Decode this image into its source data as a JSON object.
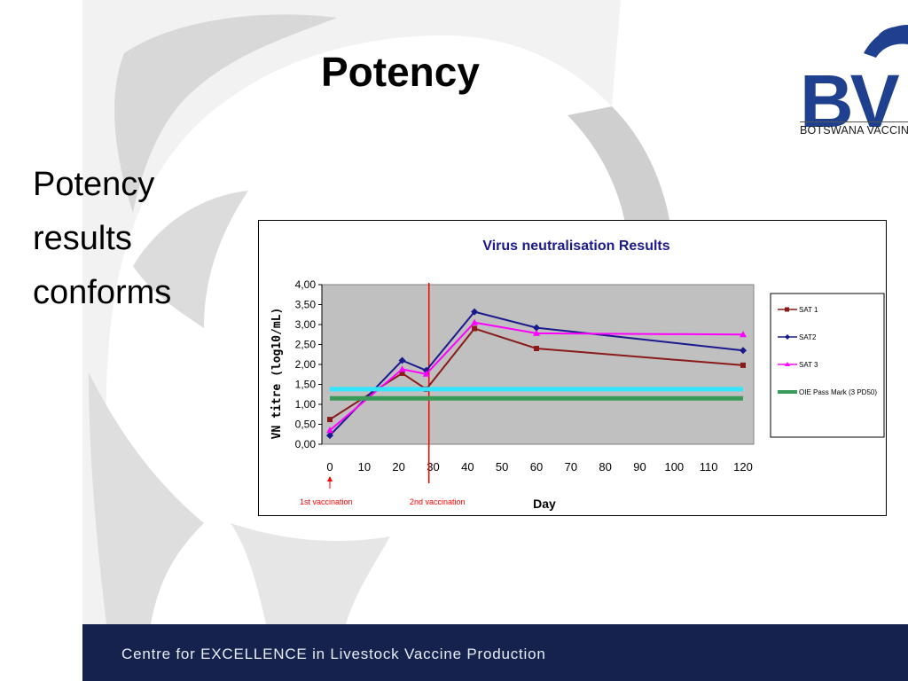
{
  "slide": {
    "title": "Potency",
    "body_lines": [
      "Potency",
      "results",
      "conforms"
    ]
  },
  "logo": {
    "letters": "BV",
    "tagline": "BOTSWANA VACCINE"
  },
  "footer": {
    "text": "Centre for EXCELLENCE in Livestock Vaccine Production"
  },
  "colors": {
    "footer_bg": "#15224d",
    "plot_bg": "#c0c0c0",
    "sat1": "#8b1a1a",
    "sat2": "#1a1a8c",
    "sat3": "#ff00ff",
    "cyan_line": "#33e5ff",
    "oie_line": "#3a9a5a",
    "vaccination_marker": "#ff0000"
  },
  "chart_data": {
    "type": "line",
    "title": "Virus neutralisation Results",
    "xlabel": "Day",
    "ylabel": "VN titre (log10/mL)",
    "xlim": [
      0,
      120
    ],
    "ylim": [
      0,
      4
    ],
    "x_ticks": [
      "0",
      "10",
      "20",
      "30",
      "40",
      "50",
      "60",
      "70",
      "80",
      "90",
      "100",
      "110",
      "120"
    ],
    "y_ticks": [
      "0,00",
      "0,50",
      "1,00",
      "1,50",
      "2,00",
      "2,50",
      "3,00",
      "3,50",
      "4,00"
    ],
    "grid": false,
    "legend_position": "right",
    "series": [
      {
        "name": "SAT 1",
        "color": "#8b1a1a",
        "marker": "square",
        "x": [
          0,
          21,
          28,
          42,
          60,
          120
        ],
        "y": [
          0.62,
          1.78,
          1.38,
          2.9,
          2.4,
          1.98
        ]
      },
      {
        "name": "SAT2",
        "color": "#1a1a8c",
        "marker": "diamond",
        "x": [
          0,
          21,
          28,
          42,
          60,
          120
        ],
        "y": [
          0.22,
          2.1,
          1.85,
          3.32,
          2.92,
          2.35
        ]
      },
      {
        "name": "SAT 3",
        "color": "#ff00ff",
        "marker": "triangle",
        "x": [
          0,
          21,
          28,
          42,
          60,
          120
        ],
        "y": [
          0.35,
          1.88,
          1.76,
          3.05,
          2.78,
          2.75
        ]
      },
      {
        "name": "",
        "color": "#33e5ff",
        "marker": "none",
        "x": [
          0,
          120
        ],
        "y": [
          1.38,
          1.38
        ]
      },
      {
        "name": "OIE Pass Mark (3 PD50)",
        "color": "#3a9a5a",
        "marker": "none",
        "x": [
          0,
          120
        ],
        "y": [
          1.15,
          1.15
        ]
      }
    ],
    "annotations": [
      {
        "text": "1st vaccination",
        "x": 0
      },
      {
        "text": "2nd vaccination",
        "x": 28
      }
    ]
  }
}
